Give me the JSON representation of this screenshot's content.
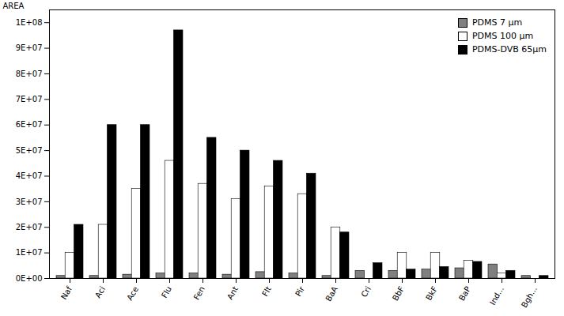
{
  "chart_data": {
    "type": "bar",
    "categories": [
      "Naf",
      "Aci",
      "Ace",
      "Flu",
      "Fen",
      "Ant",
      "Flt",
      "Pir",
      "BaA",
      "Cri",
      "BbF",
      "BkF",
      "BaP",
      "Ind...",
      "Bgh..."
    ],
    "series": [
      {
        "name": "PDMS 7 μm",
        "color": "#808080",
        "values": [
          1000000.0,
          1000000.0,
          1500000.0,
          2000000.0,
          2000000.0,
          1500000.0,
          2500000.0,
          2000000.0,
          1000000.0,
          3000000.0,
          3000000.0,
          3500000.0,
          4000000.0,
          5500000.0,
          1000000.0
        ]
      },
      {
        "name": "PDMS 100 μm",
        "color": "#ffffff",
        "values": [
          10000000.0,
          21000000.0,
          35000000.0,
          46000000.0,
          37000000.0,
          31000000.0,
          36000000.0,
          33000000.0,
          20000000.0,
          0,
          10000000.0,
          10000000.0,
          7000000.0,
          2000000.0,
          0
        ]
      },
      {
        "name": "PDMS-DVB 65μm",
        "color": "#000000",
        "values": [
          21000000.0,
          60000000.0,
          60000000.0,
          97000000.0,
          55000000.0,
          50000000.0,
          46000000.0,
          41000000.0,
          18000000.0,
          6000000.0,
          3500000.0,
          4500000.0,
          6500000.0,
          3000000.0,
          1000000.0
        ]
      }
    ],
    "ylabel": "AREA",
    "ylim": [
      0,
      105000000.0
    ],
    "yticks": [
      {
        "value": 0,
        "label": "0E+00"
      },
      {
        "value": 10000000.0,
        "label": "1E+07"
      },
      {
        "value": 20000000.0,
        "label": "2E+07"
      },
      {
        "value": 30000000.0,
        "label": "3E+07"
      },
      {
        "value": 40000000.0,
        "label": "4E+07"
      },
      {
        "value": 50000000.0,
        "label": "5E+07"
      },
      {
        "value": 60000000.0,
        "label": "6E+07"
      },
      {
        "value": 70000000.0,
        "label": "7E+07"
      },
      {
        "value": 80000000.0,
        "label": "8E+07"
      },
      {
        "value": 90000000.0,
        "label": "9E+07"
      },
      {
        "value": 100000000.0,
        "label": "1E+08"
      }
    ],
    "legend": "upper right",
    "grid": false
  }
}
